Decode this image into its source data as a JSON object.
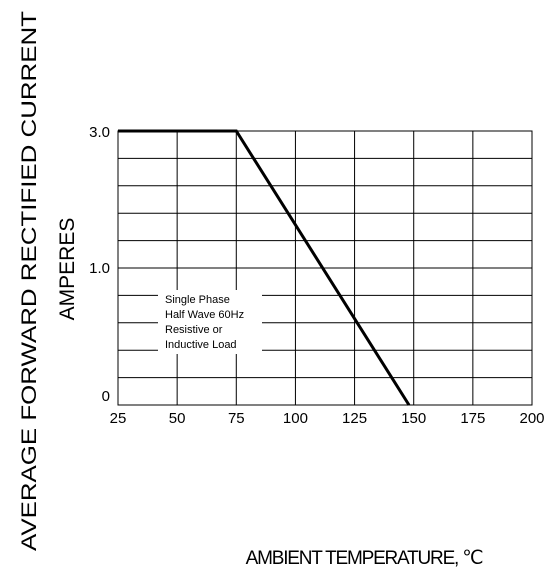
{
  "chart_data": {
    "type": "line",
    "title": "",
    "xlabel": "AMBIENT TEMPERATURE, ℃",
    "ylabel_lines": [
      "AVERAGE FORWARD RECTIFIED CURRENT",
      "AMPERES"
    ],
    "xlim": [
      25,
      200
    ],
    "x_ticks": [
      25,
      50,
      75,
      100,
      125,
      150,
      175,
      200
    ],
    "y_tick_labels": [
      "3.0",
      "1.0",
      "0"
    ],
    "grid": true,
    "series": [
      {
        "x": [
          25,
          75,
          148
        ],
        "y": [
          3.0,
          3.0,
          0
        ]
      }
    ],
    "annotation_lines": [
      "Single Phase",
      "Half Wave 60Hz",
      "Resistive or",
      "Inductive Load"
    ]
  }
}
